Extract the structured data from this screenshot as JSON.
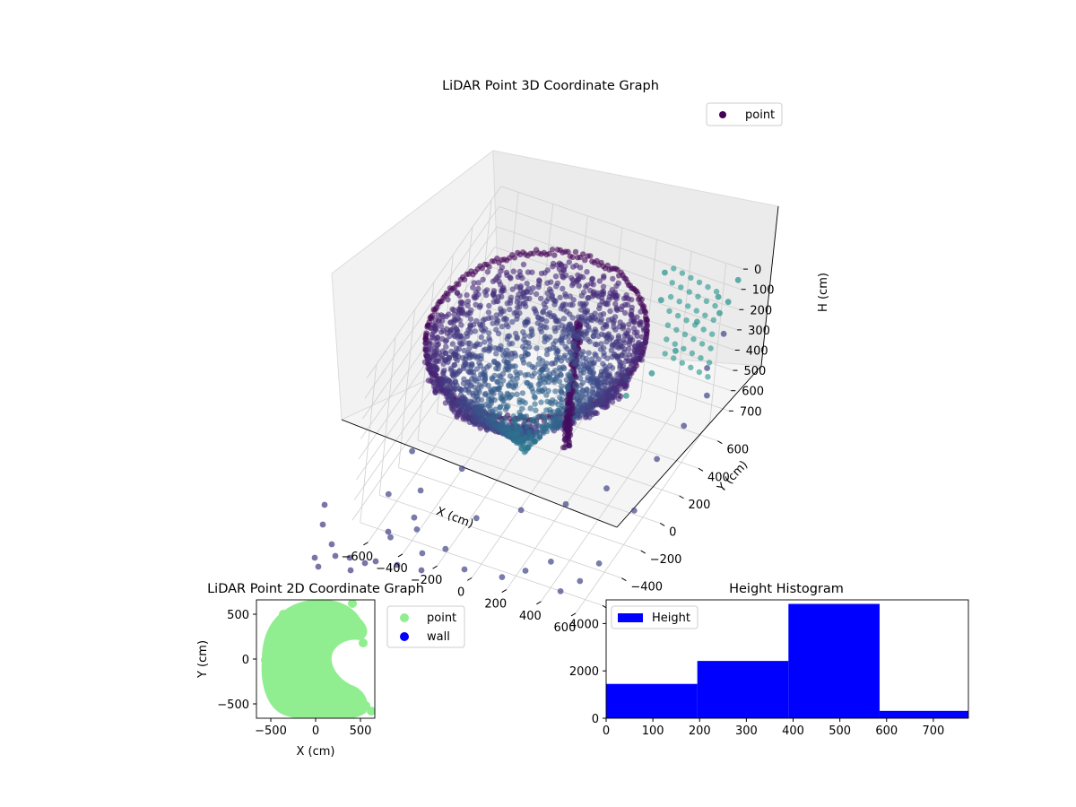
{
  "chart_data": [
    {
      "type": "scatter",
      "title": "LiDAR Point 3D Coordinate Graph",
      "xlabel": "X (cm)",
      "ylabel": "Y (cm)",
      "zlabel": "H (cm)",
      "xticks": [
        "−600",
        "−400",
        "−200",
        "0",
        "200",
        "400",
        "600"
      ],
      "yticks": [
        "−600",
        "−400",
        "−200",
        "0",
        "200",
        "400",
        "600"
      ],
      "zticks": [
        "0",
        "100",
        "200",
        "300",
        "400",
        "500",
        "600",
        "700"
      ],
      "xlim": [
        -700,
        700
      ],
      "ylim": [
        -700,
        700
      ],
      "zlim": [
        0,
        780
      ],
      "z_inverted": true,
      "legend": {
        "label": "point",
        "placement": "top-right"
      },
      "colormap": "viridis",
      "grid": true,
      "series": [
        {
          "name": "point",
          "description_of_shape": "dense dome of points around origin plus sparse outliers",
          "points": [
            [
              -500,
              -650,
              760
            ],
            [
              -420,
              -560,
              700
            ],
            [
              -380,
              -600,
              720
            ],
            [
              -300,
              -680,
              760
            ],
            [
              -200,
              -620,
              750
            ],
            [
              -50,
              -690,
              760
            ],
            [
              150,
              -660,
              760
            ],
            [
              250,
              -600,
              740
            ],
            [
              350,
              -520,
              720
            ],
            [
              480,
              -650,
              740
            ],
            [
              560,
              -600,
              700
            ],
            [
              620,
              -520,
              650
            ],
            [
              640,
              -200,
              600
            ],
            [
              600,
              100,
              560
            ],
            [
              640,
              300,
              520
            ],
            [
              660,
              500,
              500
            ],
            [
              600,
              600,
              450
            ],
            [
              650,
              650,
              300
            ],
            [
              620,
              640,
              200
            ],
            [
              680,
              600,
              100
            ],
            [
              700,
              650,
              20
            ],
            [
              640,
              560,
              60
            ],
            [
              600,
              420,
              100
            ],
            [
              560,
              280,
              160
            ],
            [
              500,
              150,
              200
            ],
            [
              420,
              40,
              260
            ],
            [
              350,
              500,
              120
            ],
            [
              300,
              620,
              80
            ],
            [
              -650,
              -400,
              760
            ],
            [
              -680,
              -100,
              760
            ],
            [
              -600,
              300,
              760
            ],
            [
              -500,
              600,
              700
            ],
            [
              -450,
              -450,
              650
            ],
            [
              -300,
              -300,
              600
            ],
            [
              -100,
              -500,
              650
            ],
            [
              100,
              -400,
              620
            ],
            [
              300,
              -300,
              600
            ],
            [
              450,
              -150,
              580
            ],
            [
              200,
              500,
              550
            ],
            [
              -200,
              450,
              560
            ]
          ]
        }
      ]
    },
    {
      "type": "scatter",
      "title": "LiDAR Point 2D Coordinate Graph",
      "xlabel": "X (cm)",
      "ylabel": "Y (cm)",
      "xticks": [
        "−500",
        "0",
        "500"
      ],
      "yticks": [
        "−500",
        "0",
        "500"
      ],
      "xlim": [
        -660,
        660
      ],
      "ylim": [
        -660,
        660
      ],
      "legend": {
        "placement": "outside-right",
        "entries": [
          {
            "label": "point",
            "color": "#90ee90"
          },
          {
            "label": "wall",
            "color": "#0000ff"
          }
        ]
      },
      "series": [
        {
          "name": "point",
          "color": "#90ee90"
        },
        {
          "name": "wall",
          "color": "#0000ff",
          "points": []
        }
      ]
    },
    {
      "type": "bar",
      "title": "Height Histogram",
      "xticks": [
        "0",
        "100",
        "200",
        "300",
        "400",
        "500",
        "600",
        "700"
      ],
      "yticks": [
        "0",
        "2000",
        "4000"
      ],
      "xlim": [
        0,
        775
      ],
      "ylim": [
        0,
        5000
      ],
      "legend": {
        "label": "Height",
        "placement": "top-left"
      },
      "bins": [
        {
          "from": 0,
          "to": 195,
          "count": 1450
        },
        {
          "from": 195,
          "to": 390,
          "count": 2420
        },
        {
          "from": 390,
          "to": 585,
          "count": 4830
        },
        {
          "from": 585,
          "to": 780,
          "count": 310
        }
      ],
      "series": [
        {
          "name": "Height",
          "color": "#0000ff"
        }
      ]
    }
  ]
}
